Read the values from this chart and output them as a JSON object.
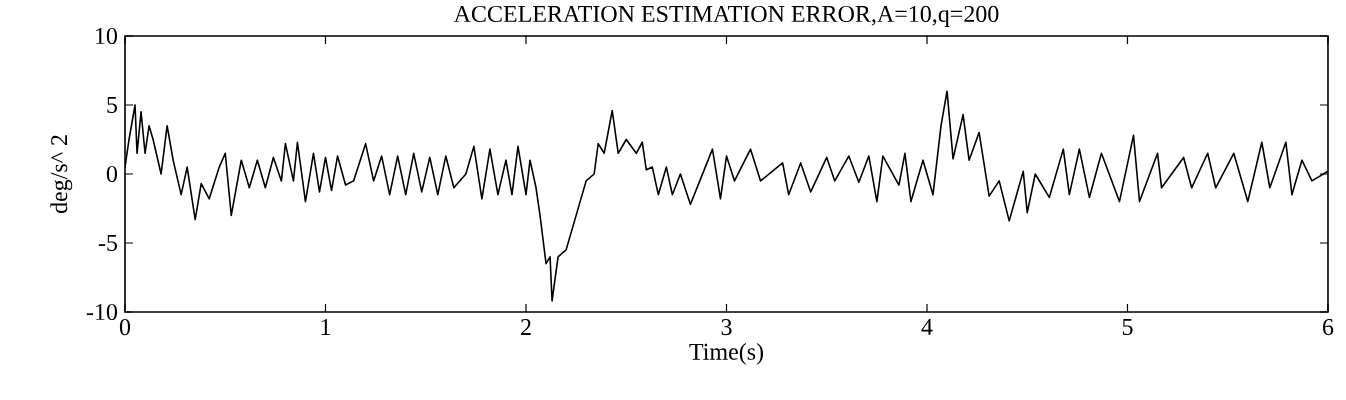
{
  "chart_data": {
    "type": "line",
    "title": "ACCELERATION ESTIMATION ERROR,A=10,q=200",
    "xlabel": "Time(s)",
    "ylabel": "deg/s^ 2",
    "xlim": [
      0,
      6
    ],
    "ylim": [
      -10,
      10
    ],
    "xticks": [
      0,
      1,
      2,
      3,
      4,
      5,
      6
    ],
    "yticks": [
      -10,
      -5,
      0,
      5,
      10
    ],
    "grid": false,
    "series": [
      {
        "color": "#000000",
        "x": [
          0.0,
          0.02,
          0.05,
          0.06,
          0.08,
          0.1,
          0.12,
          0.14,
          0.18,
          0.21,
          0.24,
          0.28,
          0.31,
          0.35,
          0.38,
          0.42,
          0.47,
          0.5,
          0.53,
          0.58,
          0.62,
          0.66,
          0.7,
          0.74,
          0.78,
          0.8,
          0.84,
          0.86,
          0.9,
          0.94,
          0.97,
          1.0,
          1.03,
          1.06,
          1.1,
          1.14,
          1.2,
          1.24,
          1.28,
          1.32,
          1.36,
          1.4,
          1.44,
          1.48,
          1.52,
          1.56,
          1.6,
          1.64,
          1.7,
          1.74,
          1.78,
          1.82,
          1.86,
          1.9,
          1.93,
          1.96,
          2.0,
          2.02,
          2.05,
          2.07,
          2.1,
          2.12,
          2.13,
          2.16,
          2.2,
          2.25,
          2.3,
          2.34,
          2.36,
          2.39,
          2.43,
          2.46,
          2.5,
          2.55,
          2.58,
          2.6,
          2.63,
          2.66,
          2.7,
          2.73,
          2.77,
          2.82,
          2.93,
          2.97,
          3.0,
          3.04,
          3.12,
          3.17,
          3.28,
          3.31,
          3.37,
          3.42,
          3.5,
          3.54,
          3.61,
          3.66,
          3.71,
          3.75,
          3.78,
          3.86,
          3.89,
          3.92,
          3.98,
          4.03,
          4.07,
          4.1,
          4.13,
          4.18,
          4.21,
          4.26,
          4.31,
          4.36,
          4.41,
          4.48,
          4.5,
          4.54,
          4.61,
          4.68,
          4.71,
          4.76,
          4.81,
          4.87,
          4.96,
          5.03,
          5.06,
          5.15,
          5.17,
          5.28,
          5.32,
          5.4,
          5.44,
          5.53,
          5.6,
          5.67,
          5.71,
          5.79,
          5.82,
          5.87,
          5.92,
          6.0
        ],
        "values": [
          0.5,
          2.5,
          5,
          1.5,
          4.5,
          1.5,
          3.5,
          2.5,
          0,
          3.5,
          1,
          -1.5,
          0.5,
          -3.3,
          -0.7,
          -1.8,
          0.5,
          1.5,
          -3,
          1,
          -1,
          1,
          -1,
          1.2,
          -0.5,
          2.2,
          -0.5,
          2.3,
          -2,
          1.5,
          -1.3,
          1.2,
          -1.2,
          1.3,
          -0.8,
          -0.5,
          2.2,
          -0.5,
          1.3,
          -1.5,
          1.3,
          -1.5,
          1.5,
          -1.3,
          1.2,
          -1.5,
          1.3,
          -1,
          0,
          2,
          -1.8,
          1.8,
          -1.5,
          1,
          -1.5,
          2,
          -1.5,
          1,
          -1,
          -3,
          -6.5,
          -6,
          -9.2,
          -6,
          -5.5,
          -3,
          -0.5,
          0,
          2.2,
          1.5,
          4.6,
          1.5,
          2.5,
          1.5,
          2.3,
          0.3,
          0.5,
          -1.5,
          0.5,
          -1.5,
          0,
          -2.2,
          1.8,
          -1.8,
          1.3,
          -0.5,
          1.8,
          -0.5,
          0.8,
          -1.5,
          0.8,
          -1.3,
          1.2,
          -0.5,
          1.3,
          -0.6,
          1.3,
          -2,
          1.3,
          -0.8,
          1.5,
          -2,
          1,
          -1.5,
          3.5,
          6,
          1.1,
          4.3,
          1,
          3,
          -1.6,
          -0.5,
          -3.4,
          0.2,
          -2.8,
          0,
          -1.7,
          1.8,
          -1.5,
          1.8,
          -1.7,
          1.5,
          -2,
          2.8,
          -2,
          1.5,
          -1,
          1.2,
          -1,
          1.5,
          -1,
          1.5,
          -2,
          2.3,
          -1,
          2.3,
          -1.5,
          1,
          -0.5,
          0.2
        ]
      }
    ]
  }
}
